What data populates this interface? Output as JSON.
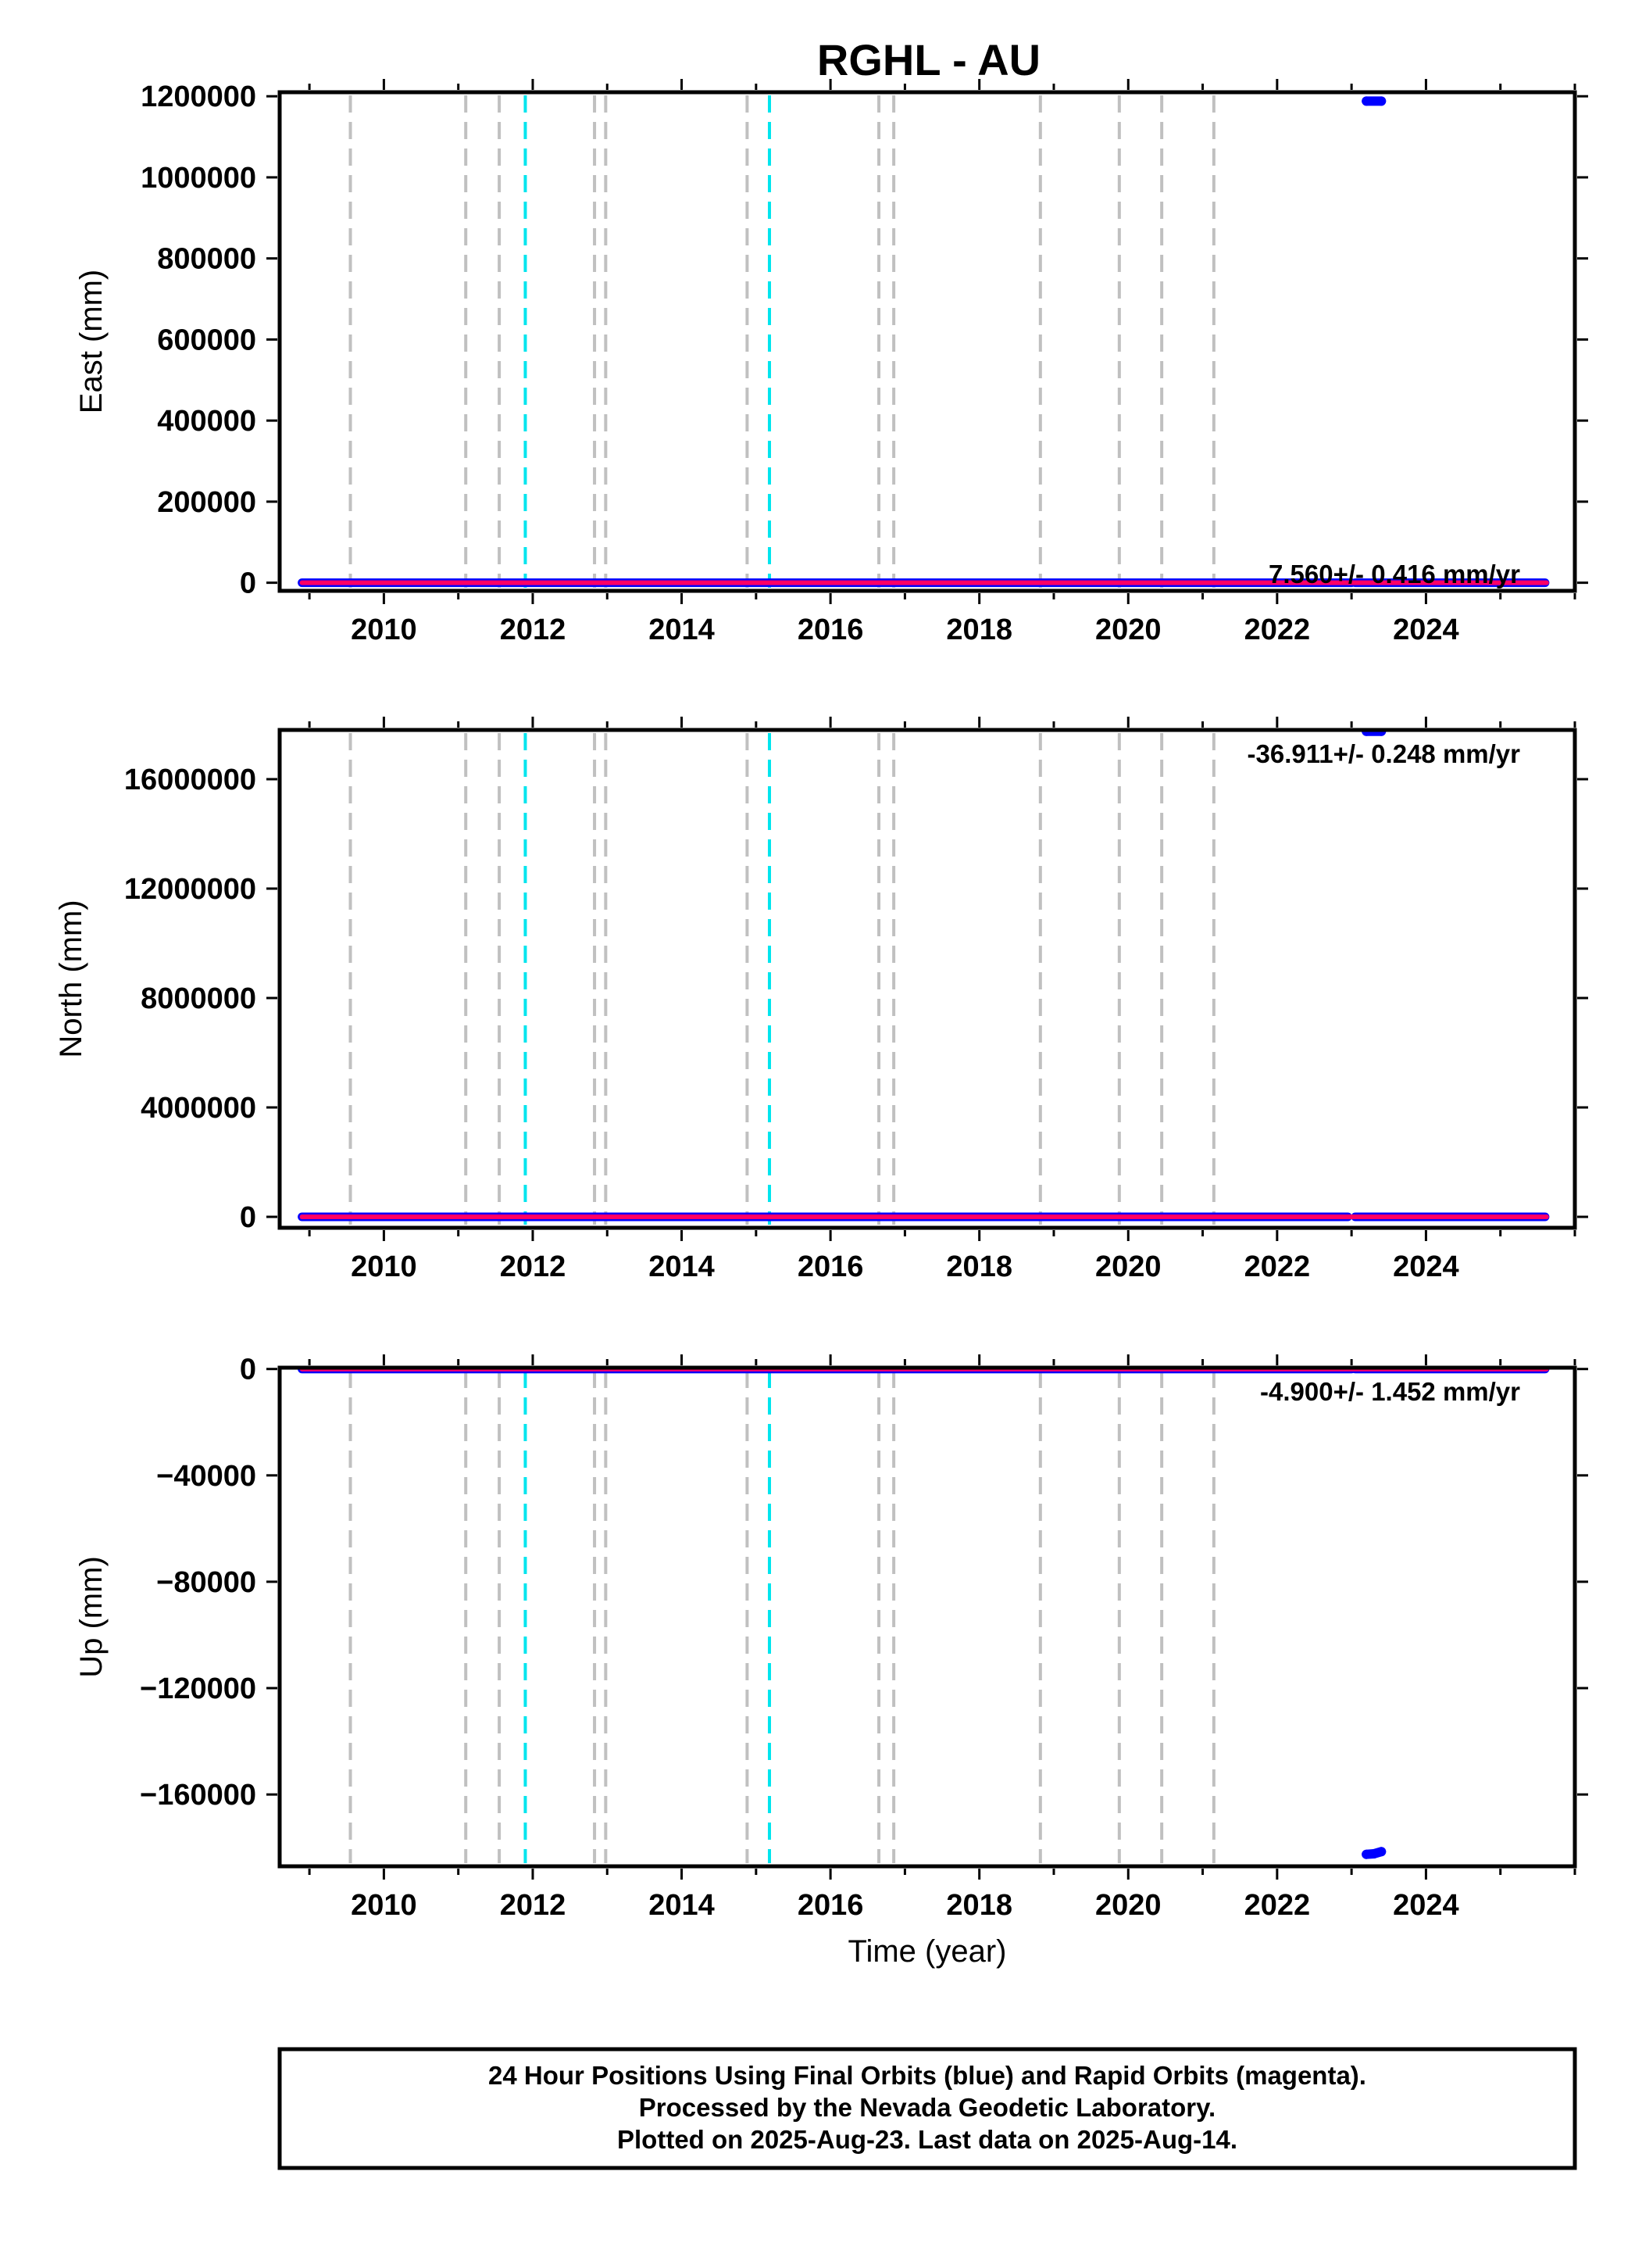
{
  "title": "RGHL - AU",
  "colors": {
    "final_orbits": "#0000ff",
    "rapid_orbits": "#ff0066",
    "gray_event": "#c0c0c0",
    "cyan_event": "#00e5ee",
    "frame": "#000000"
  },
  "footer": {
    "line1": "24 Hour Positions Using Final Orbits (blue) and Rapid Orbits (magenta).",
    "line2": "Processed by the Nevada Geodetic Laboratory.",
    "line3": "Plotted on 2025-Aug-23. Last data on 2025-Aug-14."
  },
  "chart_data": [
    {
      "type": "scatter",
      "id": "east",
      "ylabel": "East (mm)",
      "xlabel": "",
      "xlim": [
        2008.6,
        2026.0
      ],
      "ylim": [
        -20000,
        1210000
      ],
      "yticks": [
        0,
        200000,
        400000,
        600000,
        800000,
        1000000,
        1200000
      ],
      "ytick_labels": [
        "0",
        "200000",
        "400000",
        "600000",
        "800000",
        "1000000",
        "1200000"
      ],
      "xticks": [
        2010,
        2012,
        2014,
        2016,
        2018,
        2020,
        2022,
        2024
      ],
      "xtick_labels": [
        "2010",
        "2012",
        "2014",
        "2016",
        "2018",
        "2020",
        "2022",
        "2024"
      ],
      "rate_label": "7.560+/- 0.416 mm/yr",
      "rate_position": "bottom-right",
      "series": [
        {
          "role": "final",
          "segments": [
            [
              2008.9,
              2023.0,
              0
            ],
            [
              2023.05,
              2025.6,
              0
            ]
          ],
          "outliers": [
            [
              2023.2,
              1188000
            ],
            [
              2023.4,
              1188000
            ]
          ]
        },
        {
          "role": "rapid",
          "segments": [
            [
              2008.9,
              2025.62,
              0
            ]
          ]
        }
      ]
    },
    {
      "type": "scatter",
      "id": "north",
      "ylabel": "North (mm)",
      "xlabel": "",
      "xlim": [
        2008.6,
        2026.0
      ],
      "ylim": [
        -400000,
        17800000
      ],
      "yticks": [
        0,
        4000000,
        8000000,
        12000000,
        16000000
      ],
      "ytick_labels": [
        "0",
        "4000000",
        "8000000",
        "12000000",
        "16000000"
      ],
      "xticks": [
        2010,
        2012,
        2014,
        2016,
        2018,
        2020,
        2022,
        2024
      ],
      "xtick_labels": [
        "2010",
        "2012",
        "2014",
        "2016",
        "2018",
        "2020",
        "2022",
        "2024"
      ],
      "rate_label": "-36.911+/- 0.248 mm/yr",
      "rate_position": "top-right",
      "series": [
        {
          "role": "final",
          "segments": [
            [
              2008.9,
              2022.95,
              0
            ],
            [
              2023.05,
              2025.6,
              0
            ]
          ],
          "outliers": [
            [
              2023.2,
              17750000
            ],
            [
              2023.4,
              17750000
            ]
          ]
        },
        {
          "role": "rapid",
          "segments": [
            [
              2008.9,
              2025.62,
              0
            ]
          ]
        }
      ]
    },
    {
      "type": "scatter",
      "id": "up",
      "ylabel": "Up (mm)",
      "xlabel": "Time (year)",
      "xlim": [
        2008.6,
        2026.0
      ],
      "ylim": [
        -187000,
        500
      ],
      "yticks": [
        0,
        -40000,
        -80000,
        -120000,
        -160000
      ],
      "ytick_labels": [
        "0",
        "−40000",
        "−80000",
        "−120000",
        "−160000"
      ],
      "xticks": [
        2010,
        2012,
        2014,
        2016,
        2018,
        2020,
        2022,
        2024
      ],
      "xtick_labels": [
        "2010",
        "2012",
        "2014",
        "2016",
        "2018",
        "2020",
        "2022",
        "2024"
      ],
      "rate_label": "-4.900+/- 1.452 mm/yr",
      "rate_position": "top-right",
      "series": [
        {
          "role": "final",
          "segments": [
            [
              2008.9,
              2023.0,
              0
            ],
            [
              2023.05,
              2025.6,
              0
            ]
          ],
          "outliers": [
            [
              2023.2,
              -182500
            ],
            [
              2023.3,
              -182300
            ],
            [
              2023.4,
              -181500
            ]
          ]
        },
        {
          "role": "rapid",
          "segments": [
            [
              2008.9,
              2025.62,
              0
            ]
          ]
        }
      ]
    }
  ],
  "events": {
    "gray": [
      2009.55,
      2011.1,
      2011.55,
      2012.83,
      2012.98,
      2014.88,
      2016.65,
      2016.85,
      2018.82,
      2019.88,
      2020.45,
      2021.15
    ],
    "cyan": [
      2011.9,
      2015.18
    ]
  }
}
